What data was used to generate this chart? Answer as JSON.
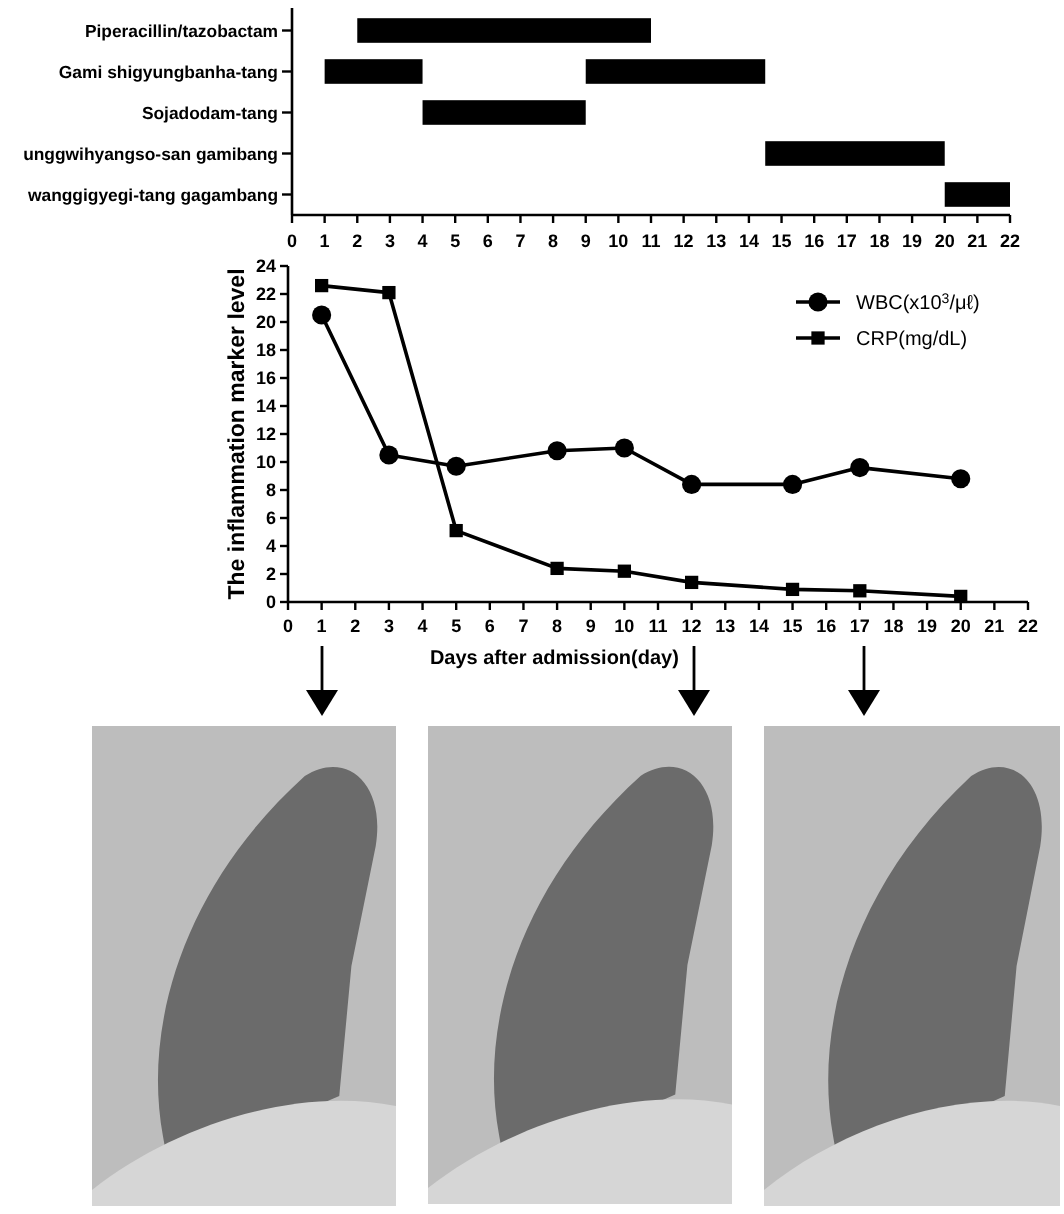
{
  "chart_data": [
    {
      "type": "bar",
      "orientation": "horizontal",
      "categories": [
        "Piperacillin/tazobactam",
        "Gami shigyungbanha-tang",
        "Sojadodam-tang",
        "unggwihyangso-san gamibang",
        "wanggigyegi-tang gagambang"
      ],
      "series": [
        {
          "color": "#000000",
          "values": [
            9,
            3,
            5,
            5.5,
            2
          ],
          "base": [
            2,
            1,
            4,
            14.5,
            20
          ]
        },
        {
          "color": "#000000",
          "values": [
            null,
            5.5,
            null,
            null,
            null
          ],
          "base": [
            null,
            9,
            null,
            null,
            null
          ]
        }
      ],
      "xlim": [
        0,
        22
      ],
      "xticks": [
        0,
        1,
        2,
        3,
        4,
        5,
        6,
        7,
        8,
        9,
        10,
        11,
        12,
        13,
        14,
        15,
        16,
        17,
        18,
        19,
        20,
        21,
        22
      ]
    },
    {
      "type": "line",
      "x": [
        1,
        3,
        5,
        8,
        10,
        12,
        15,
        17,
        20
      ],
      "series": [
        {
          "name": "WBC(x10$^{3}$/μℓ)",
          "color": "#000000",
          "marker": "circle",
          "values": [
            20.5,
            10.5,
            9.7,
            10.8,
            11.0,
            8.4,
            8.4,
            9.6,
            8.8
          ]
        },
        {
          "name": "CRP(mg/dL)",
          "color": "#000000",
          "marker": "square",
          "values": [
            22.6,
            22.1,
            5.1,
            2.4,
            2.2,
            1.4,
            0.9,
            0.8,
            0.4
          ]
        }
      ],
      "xlabel": "Days after admission(day)",
      "ylabel": "The inflammation marker level",
      "xlim": [
        0,
        22
      ],
      "ylim": [
        0,
        24
      ],
      "xticks": [
        0,
        1,
        2,
        3,
        4,
        5,
        6,
        7,
        8,
        9,
        10,
        11,
        12,
        13,
        14,
        15,
        16,
        17,
        18,
        19,
        20,
        21,
        22
      ],
      "yticks": [
        0,
        2,
        4,
        6,
        8,
        10,
        12,
        14,
        16,
        18,
        20,
        22,
        24
      ],
      "legend": "top right",
      "line_style": "solid"
    }
  ]
}
